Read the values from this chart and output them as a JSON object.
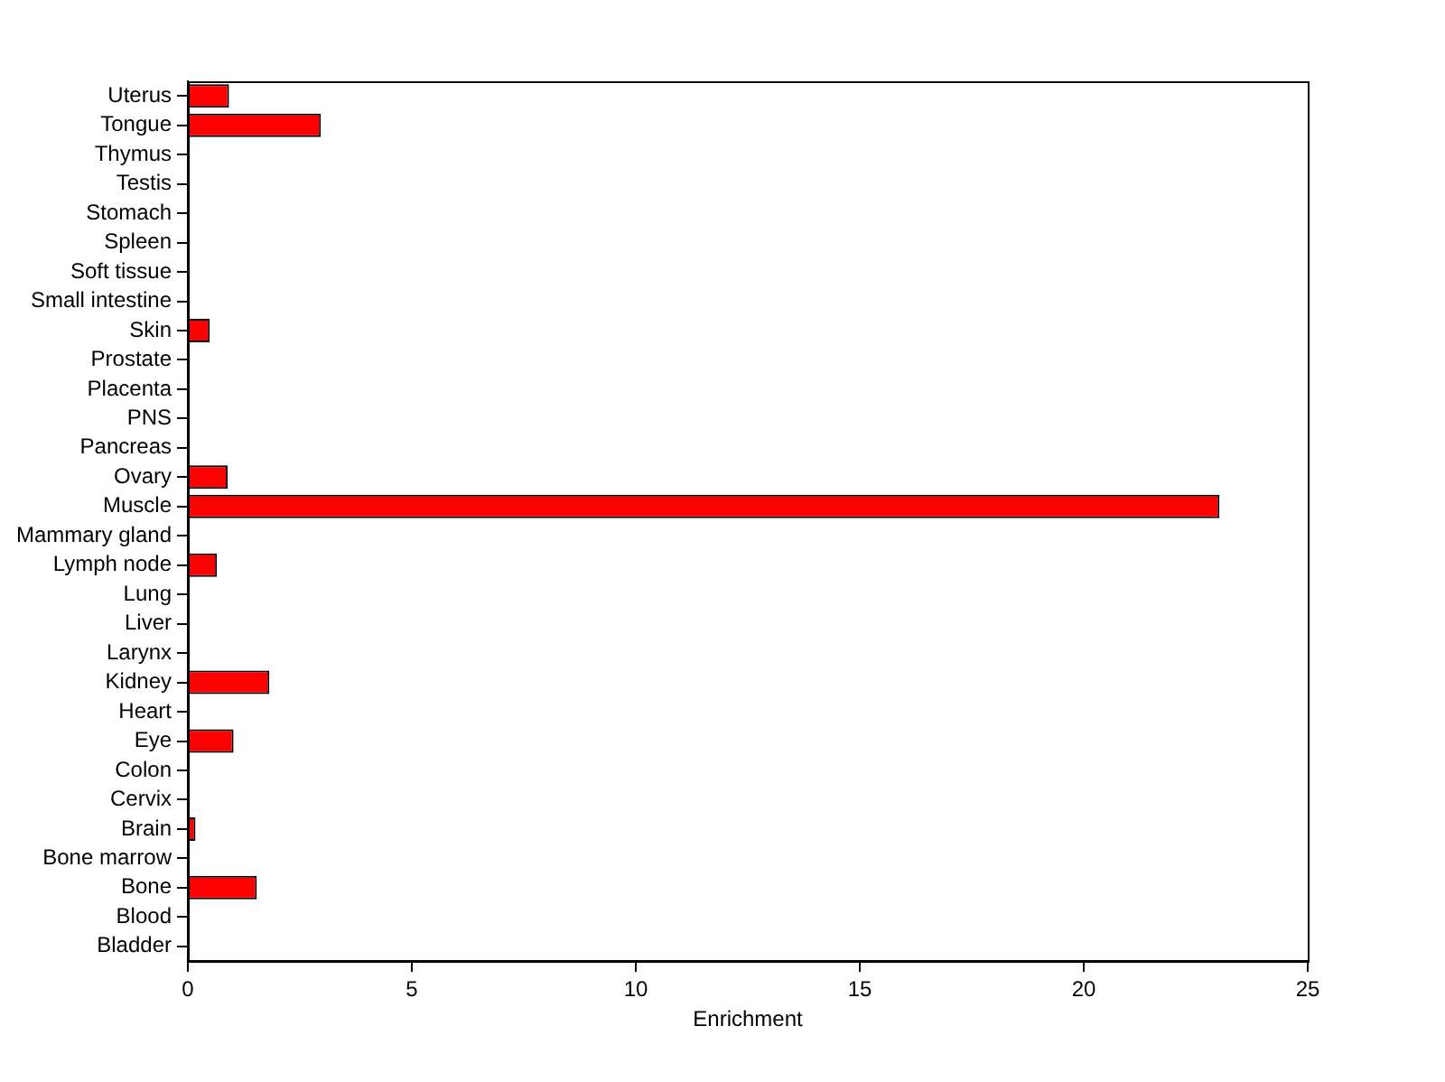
{
  "chart_data": {
    "type": "bar",
    "orientation": "horizontal",
    "xlabel": "Enrichment",
    "categories": [
      "Uterus",
      "Tongue",
      "Thymus",
      "Testis",
      "Stomach",
      "Spleen",
      "Soft tissue",
      "Small intestine",
      "Skin",
      "Prostate",
      "Placenta",
      "PNS",
      "Pancreas",
      "Ovary",
      "Muscle",
      "Mammary gland",
      "Lymph node",
      "Lung",
      "Liver",
      "Larynx",
      "Kidney",
      "Heart",
      "Eye",
      "Colon",
      "Cervix",
      "Brain",
      "Bone marrow",
      "Bone",
      "Blood",
      "Bladder"
    ],
    "values": [
      0.92,
      2.97,
      0,
      0,
      0,
      0,
      0,
      0,
      0.49,
      0,
      0,
      0,
      0,
      0.89,
      23.03,
      0,
      0.65,
      0,
      0,
      0,
      1.82,
      0,
      1.02,
      0,
      0,
      0.17,
      0,
      1.54,
      0,
      0
    ],
    "color": "#ff0000",
    "xlim": [
      0,
      25
    ],
    "xticks": [
      0,
      5,
      10,
      15,
      20,
      25
    ],
    "grid": false,
    "legend": false
  }
}
